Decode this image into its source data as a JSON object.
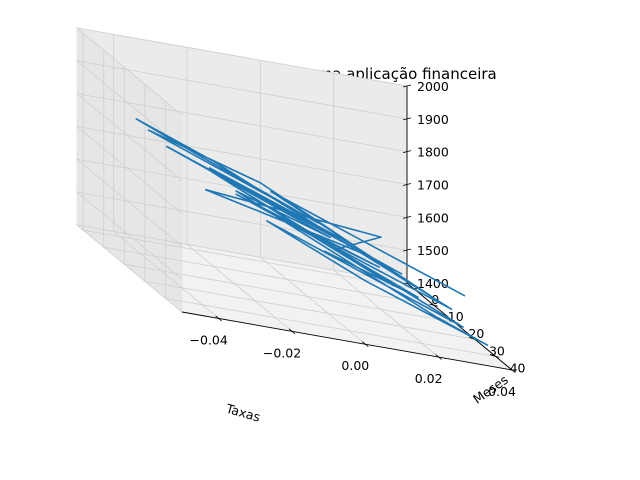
{
  "chart_data": {
    "type": "line",
    "projection": "3d",
    "title": "Comportamento de uma aplicação financeira",
    "xlabel": "Taxas",
    "ylabel": "Meses",
    "zlabel": "",
    "xlim": [
      -0.05,
      0.04
    ],
    "ylim": [
      -3,
      48
    ],
    "zlim": [
      1400,
      2000
    ],
    "xticks": [
      "−0.04",
      "−0.02",
      "0.00",
      "0.02",
      "0.04"
    ],
    "xtick_values": [
      -0.04,
      -0.02,
      0.0,
      0.02,
      0.04
    ],
    "yticks": [
      "0",
      "10",
      "20",
      "30",
      "40"
    ],
    "ytick_values": [
      0,
      10,
      20,
      30,
      40
    ],
    "zticks": [
      "1400",
      "1500",
      "1600",
      "1700",
      "1800",
      "1900",
      "2000"
    ],
    "ztick_values": [
      1400,
      1500,
      1600,
      1700,
      1800,
      1900,
      2000
    ],
    "grid": true,
    "series": [
      {
        "color": "#1f77b4",
        "points": [
          {
            "x": 0.03,
            "y": 43,
            "z": 1580
          },
          {
            "x": -0.01,
            "y": 20,
            "z": 1700
          },
          {
            "x": 0.025,
            "y": 35,
            "z": 1530
          },
          {
            "x": 0.01,
            "y": 30,
            "z": 1600
          },
          {
            "x": -0.025,
            "y": 15,
            "z": 1650
          },
          {
            "x": 0.02,
            "y": 20,
            "z": 1620
          },
          {
            "x": 0.005,
            "y": 25,
            "z": 1580
          },
          {
            "x": -0.015,
            "y": 12,
            "z": 1640
          },
          {
            "x": 0.015,
            "y": 28,
            "z": 1560
          },
          {
            "x": -0.005,
            "y": 18,
            "z": 1610
          },
          {
            "x": 0.028,
            "y": 40,
            "z": 1520
          },
          {
            "x": -0.02,
            "y": 10,
            "z": 1720
          },
          {
            "x": -0.04,
            "y": 8,
            "z": 1800
          },
          {
            "x": -0.03,
            "y": 12,
            "z": 1760
          },
          {
            "x": 0.0,
            "y": 25,
            "z": 1650
          },
          {
            "x": -0.035,
            "y": 5,
            "z": 1760
          },
          {
            "x": -0.01,
            "y": 15,
            "z": 1700
          },
          {
            "x": 0.01,
            "y": 25,
            "z": 1600
          },
          {
            "x": -0.02,
            "y": 8,
            "z": 1690
          },
          {
            "x": 0.02,
            "y": 30,
            "z": 1560
          },
          {
            "x": -0.03,
            "y": 5,
            "z": 1720
          },
          {
            "x": 0.005,
            "y": 22,
            "z": 1600
          },
          {
            "x": -0.015,
            "y": 12,
            "z": 1650
          },
          {
            "x": 0.025,
            "y": 38,
            "z": 1480
          },
          {
            "x": 0.035,
            "y": 45,
            "z": 1450
          },
          {
            "x": 0.01,
            "y": 30,
            "z": 1520
          },
          {
            "x": -0.01,
            "y": 18,
            "z": 1600
          },
          {
            "x": 0.03,
            "y": 42,
            "z": 1480
          },
          {
            "x": -0.02,
            "y": 6,
            "z": 1680
          },
          {
            "x": 0.015,
            "y": 35,
            "z": 1540
          },
          {
            "x": -0.005,
            "y": 22,
            "z": 1620
          },
          {
            "x": 0.02,
            "y": 38,
            "z": 1530
          },
          {
            "x": 0.0,
            "y": 28,
            "z": 1580
          }
        ]
      }
    ]
  }
}
